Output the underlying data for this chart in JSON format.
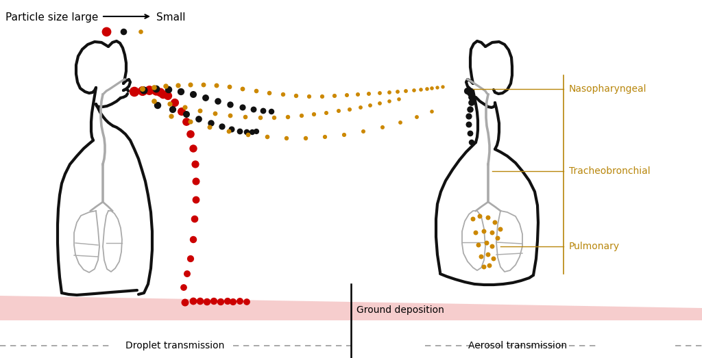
{
  "bg_color": "#ffffff",
  "ground_color": "#f5c5c5",
  "label_color": "#b8860b",
  "dashed_color": "#999999",
  "body_color": "#111111",
  "internal_color": "#aaaaaa",
  "dot_colors": {
    "large": "#cc0000",
    "medium": "#111111",
    "small": "#cc8800"
  },
  "labels": {
    "particle_size": "Particle size large",
    "small": "Small",
    "nasopharyngeal": "Nasopharyngeal",
    "tracheobronchial": "Tracheobronchial",
    "pulmonary": "Pulmonary",
    "ground_deposition": "Ground deposition",
    "droplet": "Droplet transmission",
    "aerosol": "Aerosol transmission"
  },
  "figsize": [
    10.24,
    5.23
  ],
  "dpi": 100
}
